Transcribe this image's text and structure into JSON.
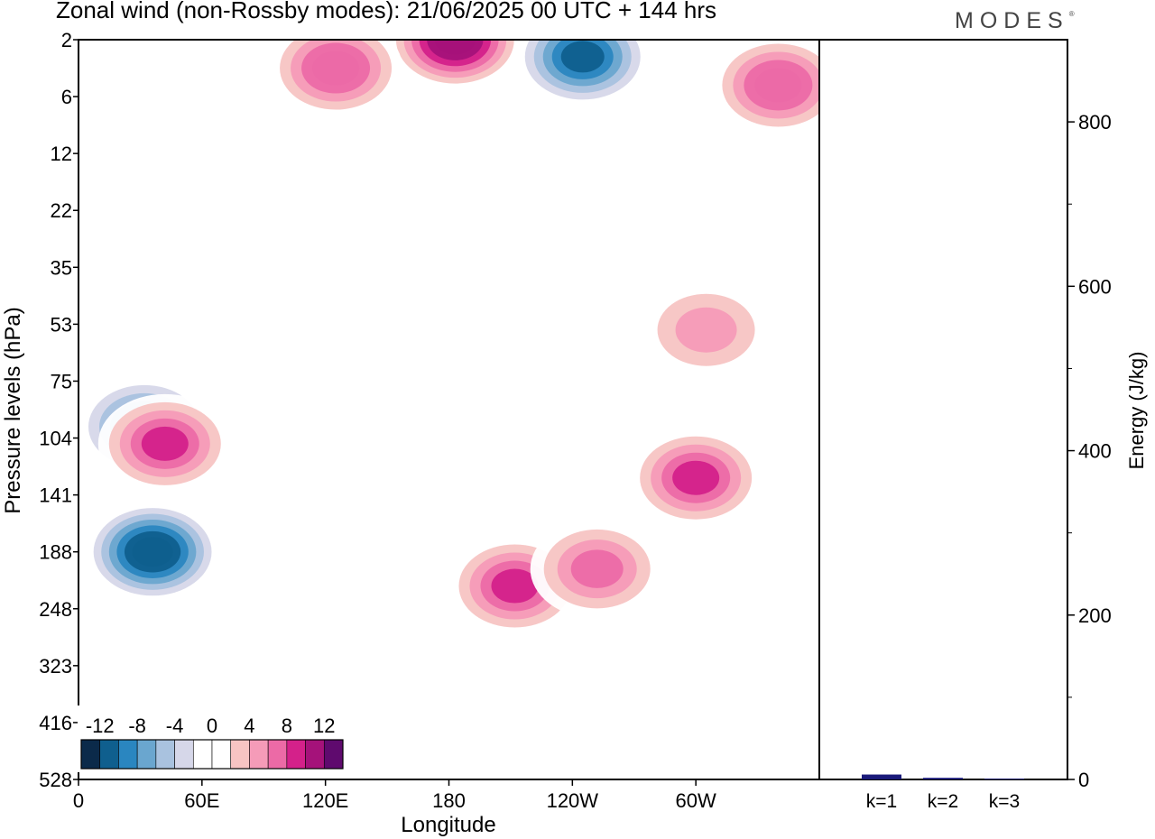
{
  "header": {
    "title": "Zonal wind (non-Rossby modes):  21/06/2025  00 UTC  + 144 hrs",
    "brand": "MODES",
    "brand_mark": "®"
  },
  "colors": {
    "scale": [
      "#0b2a4a",
      "#0f5f8e",
      "#2a86c0",
      "#6aa6cf",
      "#a9c2df",
      "#d6d7e9",
      "#ffffff",
      "#ffffff",
      "#f7c4c3",
      "#f59bb8",
      "#ec6aa6",
      "#d4218a",
      "#a5127a",
      "#5f0a6e"
    ],
    "energy_bar": "#1a1a7a"
  },
  "colorbar": {
    "labels": [
      "-12",
      "-8",
      "-4",
      "0",
      "4",
      "8",
      "12"
    ]
  },
  "chart_data": [
    {
      "type": "heatmap",
      "title": "Zonal wind (non-Rossby modes):  21/06/2025  00 UTC  + 144 hrs",
      "xlabel": "Longitude",
      "ylabel": "Pressure levels (hPa)",
      "x_ticks": [
        "0",
        "60E",
        "120E",
        "180",
        "120W",
        "60W"
      ],
      "y_ticks": [
        "2",
        "6",
        "12",
        "22",
        "35",
        "53",
        "75",
        "104",
        "141",
        "188",
        "248",
        "323",
        "416",
        "528"
      ],
      "x_range_deg": [
        0,
        360
      ],
      "contour_levels": [
        -14,
        -12,
        -10,
        -8,
        -6,
        -4,
        -2,
        2,
        4,
        6,
        8,
        10,
        12,
        14
      ],
      "features": [
        {
          "lon": 36,
          "level_index": 9,
          "value": -13
        },
        {
          "lon": 32,
          "level_index": 6.8,
          "value": -9
        },
        {
          "lon": 42,
          "level_index": 7.1,
          "value": 10
        },
        {
          "lon": 212,
          "level_index": 9.6,
          "value": 10
        },
        {
          "lon": 252,
          "level_index": 9.3,
          "value": 8
        },
        {
          "lon": 300,
          "level_index": 7.7,
          "value": 10
        },
        {
          "lon": 245,
          "level_index": 0.3,
          "value": -12
        },
        {
          "lon": 183,
          "level_index": 0,
          "value": 13
        },
        {
          "lon": 125,
          "level_index": 0.5,
          "value": 9
        },
        {
          "lon": 340,
          "level_index": 0.8,
          "value": 9
        },
        {
          "lon": 305,
          "level_index": 5.1,
          "value": 6
        }
      ],
      "colorbar_ticks": [
        "-12",
        "-8",
        "-4",
        "0",
        "4",
        "8",
        "12"
      ]
    },
    {
      "type": "bar",
      "ylabel": "Energy (J/kg)",
      "categories": [
        "k=1",
        "k=2",
        "k=3"
      ],
      "values": [
        6,
        2,
        1
      ],
      "ylim": [
        0,
        900
      ],
      "y_ticks": [
        "0",
        "200",
        "400",
        "600",
        "800"
      ]
    }
  ]
}
